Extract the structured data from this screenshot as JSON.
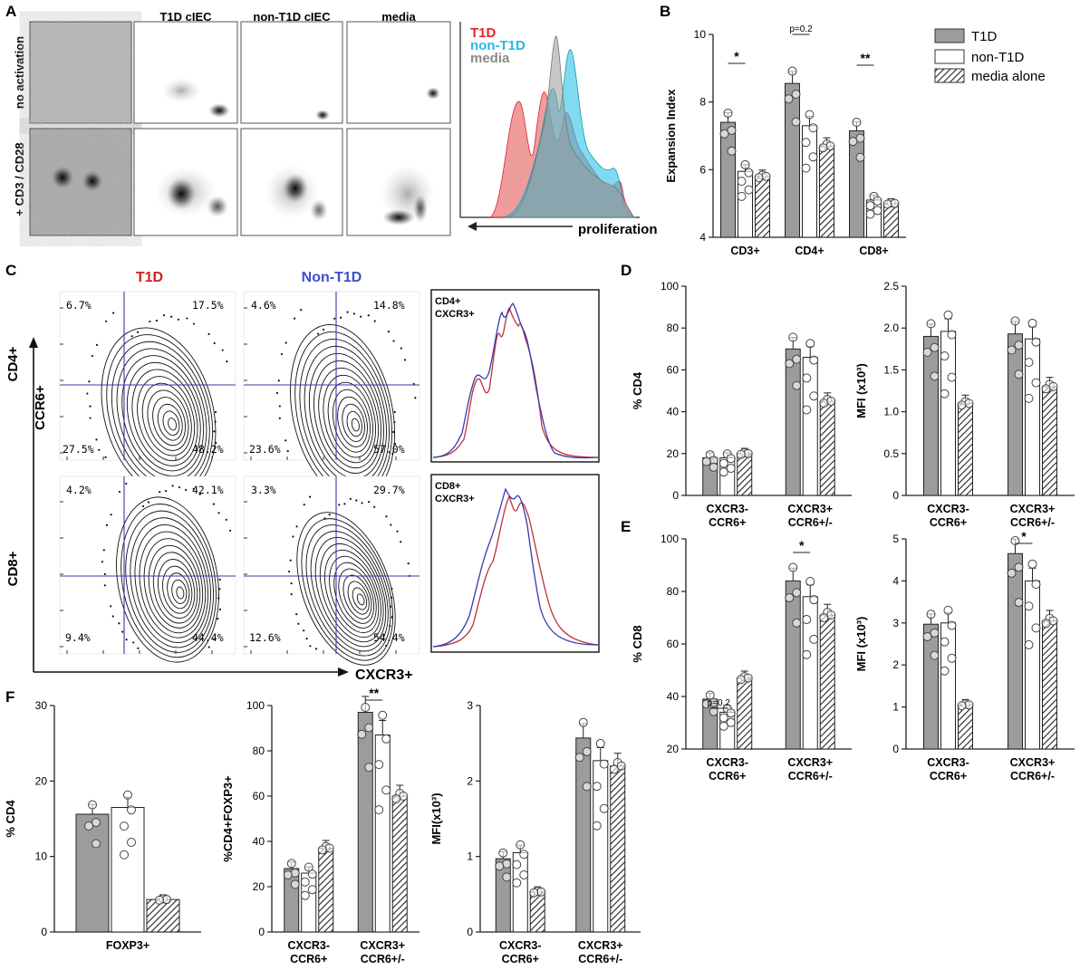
{
  "panels": {
    "a": "A",
    "b": "B",
    "c": "C",
    "d": "D",
    "e": "E",
    "f": "F"
  },
  "panelA": {
    "col_headers": [
      "T1D cIEC",
      "non-T1D cIEC",
      "media"
    ],
    "row_labels": [
      "no activation",
      "+ CD3 / CD28"
    ],
    "legend": [
      {
        "label": "T1D",
        "color": "#e8202a"
      },
      {
        "label": "non-T1D",
        "color": "#27b7e6"
      },
      {
        "label": "media",
        "color": "#8a8a8a"
      }
    ],
    "hist_xlabel": "proliferation"
  },
  "legend": [
    "T1D",
    "non-T1D",
    "media alone"
  ],
  "panelC": {
    "col_headers": [
      {
        "label": "T1D",
        "color": "#cc2222"
      },
      {
        "label": "Non-T1D",
        "color": "#3b50c8"
      }
    ],
    "row_labels": [
      "CD4+",
      "CD8+"
    ],
    "y_axis": "CCR6+",
    "x_axis": "CXCR3+",
    "quadrants": {
      "cd4_t1d": [
        "6.7%",
        "17.5%",
        "27.5%",
        "48.2%"
      ],
      "cd4_non": [
        "4.6%",
        "14.8%",
        "23.6%",
        "57.0%"
      ],
      "cd8_t1d": [
        "4.2%",
        "42.1%",
        "9.4%",
        "44.4%"
      ],
      "cd8_non": [
        "3.3%",
        "29.7%",
        "12.6%",
        "54.4%"
      ]
    },
    "hist_labels": [
      [
        "CD4+",
        "CXCR3+"
      ],
      [
        "CD8+",
        "CXCR3+"
      ]
    ],
    "line_colors": {
      "t1d": "#c0303a",
      "non": "#3838b0"
    }
  },
  "chart_data": [
    {
      "id": "B",
      "type": "bar",
      "ylabel": "Expansion Index",
      "ylim": [
        4,
        10
      ],
      "yticks": [
        "4",
        "6",
        "8",
        "10"
      ],
      "categories": [
        "CD3+",
        "CD4+",
        "CD8+"
      ],
      "series": [
        {
          "name": "T1D",
          "values": [
            7.4,
            8.55,
            7.15
          ]
        },
        {
          "name": "non-T1D",
          "values": [
            5.95,
            7.3,
            5.1
          ]
        },
        {
          "name": "media alone",
          "values": [
            5.8,
            6.7,
            5.0
          ]
        }
      ],
      "annotations": [
        {
          "category": 0,
          "text": "*"
        },
        {
          "category": 1,
          "text": "p=0.2"
        },
        {
          "category": 2,
          "text": "**"
        }
      ]
    },
    {
      "id": "D-left",
      "type": "bar",
      "ylabel": "% CD4",
      "ylim": [
        0,
        100
      ],
      "yticks": [
        "0",
        "20",
        "40",
        "60",
        "80",
        "100"
      ],
      "categories": [
        [
          "CXCR3-",
          "CCR6+"
        ],
        [
          "CXCR3+",
          "CCR6+/-"
        ]
      ],
      "series": [
        {
          "name": "T1D",
          "values": [
            18,
            70
          ]
        },
        {
          "name": "non-T1D",
          "values": [
            18,
            66
          ]
        },
        {
          "name": "media alone",
          "values": [
            20,
            45
          ]
        }
      ]
    },
    {
      "id": "D-right",
      "type": "bar",
      "ylabel": "MFI (x10³)",
      "ylim": [
        0,
        2.5
      ],
      "yticks": [
        "0",
        "0.5",
        "1.0",
        "1.5",
        "2.0",
        "2.5"
      ],
      "categories": [
        [
          "CXCR3-",
          "CCR6+"
        ],
        [
          "CXCR3+",
          "CCR6+/-"
        ]
      ],
      "series": [
        {
          "name": "T1D",
          "values": [
            1.9,
            1.93
          ]
        },
        {
          "name": "non-T1D",
          "values": [
            1.96,
            1.87
          ]
        },
        {
          "name": "media alone",
          "values": [
            1.1,
            1.3
          ]
        }
      ]
    },
    {
      "id": "E-left",
      "type": "bar",
      "ylabel": "% CD8",
      "ylim": [
        20,
        100
      ],
      "yticks": [
        "20",
        "40",
        "60",
        "80",
        "100"
      ],
      "categories": [
        [
          "CXCR3-",
          "CCR6+"
        ],
        [
          "CXCR3+",
          "CCR6+/-"
        ]
      ],
      "series": [
        {
          "name": "T1D",
          "values": [
            39,
            84
          ]
        },
        {
          "name": "non-T1D",
          "values": [
            34,
            78
          ]
        },
        {
          "name": "media alone",
          "values": [
            47,
            71
          ]
        }
      ],
      "annotations": [
        {
          "category": 0,
          "text": "p=0.2"
        },
        {
          "category": 1,
          "text": "*"
        }
      ]
    },
    {
      "id": "E-right",
      "type": "bar",
      "ylabel": "MFI (x10³)",
      "ylim": [
        0,
        5
      ],
      "yticks": [
        "0",
        "1",
        "2",
        "3",
        "4",
        "5"
      ],
      "categories": [
        [
          "CXCR3-",
          "CCR6+"
        ],
        [
          "CXCR3+",
          "CCR6+/-"
        ]
      ],
      "series": [
        {
          "name": "T1D",
          "values": [
            2.97,
            4.65
          ]
        },
        {
          "name": "non-T1D",
          "values": [
            3.0,
            4.0
          ]
        },
        {
          "name": "media alone",
          "values": [
            1.05,
            3.05
          ]
        }
      ],
      "annotations": [
        {
          "category": 1,
          "text": "*"
        }
      ]
    },
    {
      "id": "F-left",
      "type": "bar",
      "ylabel": "% CD4",
      "ylim": [
        0,
        30
      ],
      "yticks": [
        "0",
        "10",
        "20",
        "30"
      ],
      "categories": [
        "FOXP3+"
      ],
      "series": [
        {
          "name": "T1D",
          "values": [
            15.6
          ]
        },
        {
          "name": "non-T1D",
          "values": [
            16.5
          ]
        },
        {
          "name": "media alone",
          "values": [
            4.3
          ]
        }
      ]
    },
    {
      "id": "F-mid",
      "type": "bar",
      "ylabel": "%CD4+FOXP3+",
      "ylim": [
        0,
        100
      ],
      "yticks": [
        "0",
        "20",
        "40",
        "60",
        "80",
        "100"
      ],
      "categories": [
        [
          "CXCR3-",
          "CCR6+"
        ],
        [
          "CXCR3+",
          "CCR6+/-"
        ]
      ],
      "series": [
        {
          "name": "T1D",
          "values": [
            28,
            97
          ]
        },
        {
          "name": "non-T1D",
          "values": [
            26,
            87
          ]
        },
        {
          "name": "media alone",
          "values": [
            37,
            60
          ]
        }
      ],
      "annotations": [
        {
          "category": 1,
          "text": "**"
        }
      ]
    },
    {
      "id": "F-right",
      "type": "bar",
      "ylabel": "MFI(x10³)",
      "ylim": [
        0,
        3
      ],
      "yticks": [
        "0",
        "1",
        "2",
        "3"
      ],
      "categories": [
        [
          "CXCR3-",
          "CCR6+"
        ],
        [
          "CXCR3+",
          "CCR6+/-"
        ]
      ],
      "series": [
        {
          "name": "T1D",
          "values": [
            0.97,
            2.57
          ]
        },
        {
          "name": "non-T1D",
          "values": [
            1.05,
            2.27
          ]
        },
        {
          "name": "media alone",
          "values": [
            0.53,
            2.2
          ]
        }
      ]
    }
  ]
}
